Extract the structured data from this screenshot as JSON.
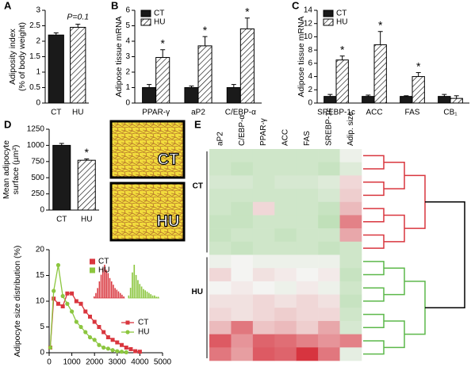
{
  "chart_data": [
    {
      "type": "bar",
      "panel": "A",
      "ylabel": [
        "Adiposity index",
        "(% of body weight)"
      ],
      "categories": [
        "CT",
        "HU"
      ],
      "values": [
        2.2,
        2.45
      ],
      "errors": [
        0.07,
        0.1
      ],
      "colors": [
        "#1a1a1a",
        "#ffffff"
      ],
      "hatch": [
        false,
        true
      ],
      "annotation": "P=0.1",
      "ylim": [
        0,
        3
      ],
      "yticks": [
        0,
        0.5,
        1,
        1.5,
        2,
        2.5,
        3
      ]
    },
    {
      "type": "bar",
      "panel": "B",
      "ylabel": [
        "Adipose tissue mRNA"
      ],
      "categories": [
        "PPAR-γ",
        "aP2",
        "C/EBP-α"
      ],
      "series": [
        {
          "name": "CT",
          "color": "#1a1a1a",
          "hatch": false,
          "values": [
            1,
            1,
            1
          ],
          "errors": [
            0.2,
            0.1,
            0.2
          ]
        },
        {
          "name": "HU",
          "color": "#ffffff",
          "hatch": true,
          "values": [
            2.95,
            3.7,
            4.8
          ],
          "errors": [
            0.5,
            0.6,
            0.7
          ],
          "significance": [
            "*",
            "*",
            "*"
          ]
        }
      ],
      "ylim": [
        0,
        6
      ],
      "yticks": [
        0,
        1,
        2,
        3,
        4,
        5,
        6
      ],
      "legend": "top-left"
    },
    {
      "type": "bar",
      "panel": "C",
      "ylabel": [
        "Adipose tissue mRNA"
      ],
      "categories": [
        "SREBP-1c",
        "ACC",
        "FAS",
        "CB₁"
      ],
      "series": [
        {
          "name": "CT",
          "color": "#1a1a1a",
          "hatch": false,
          "values": [
            1,
            1,
            1,
            1
          ],
          "errors": [
            0.3,
            0.2,
            0.1,
            0.3
          ]
        },
        {
          "name": "HU",
          "color": "#ffffff",
          "hatch": true,
          "values": [
            6.5,
            8.8,
            4,
            0.7
          ],
          "errors": [
            0.6,
            2,
            0.6,
            0.4
          ],
          "significance": [
            "*",
            "*",
            "*",
            null
          ]
        }
      ],
      "ylim": [
        0,
        14
      ],
      "yticks": [
        0,
        2,
        4,
        6,
        8,
        10,
        12,
        14
      ],
      "legend": "top-left"
    },
    {
      "type": "bar",
      "panel": "D",
      "ylabel": [
        "Mean adipocyte",
        "surface (µm²)"
      ],
      "categories": [
        "CT",
        "HU"
      ],
      "values": [
        1000,
        770
      ],
      "errors": [
        30,
        20
      ],
      "colors": [
        "#1a1a1a",
        "#ffffff"
      ],
      "hatch": [
        false,
        true
      ],
      "significance": [
        null,
        "*"
      ],
      "images": [
        "CT",
        "HU"
      ],
      "ylim": [
        0,
        1250
      ],
      "yticks": [
        0,
        250,
        500,
        750,
        1000,
        1250
      ]
    },
    {
      "type": "line",
      "ylabel": [
        "Adipocyte size distribution (%)"
      ],
      "series": [
        {
          "name": "CT",
          "color": "#d9363e",
          "marker": "square",
          "x": [
            50,
            200,
            400,
            600,
            800,
            1000,
            1200,
            1400,
            1600,
            1800,
            2000,
            2200,
            2400,
            2600,
            2800,
            3000,
            3200,
            3400,
            3600,
            3800,
            4000
          ],
          "values": [
            1,
            10.5,
            9.5,
            9,
            11.5,
            11.5,
            10,
            9.5,
            8,
            7,
            6,
            5,
            4,
            3,
            2.5,
            2,
            1.5,
            1,
            0.7,
            0.3,
            0.2
          ]
        },
        {
          "name": "HU",
          "color": "#8cc63f",
          "marker": "circle",
          "x": [
            50,
            200,
            400,
            600,
            800,
            1000,
            1200,
            1400,
            1600,
            1800,
            2000,
            2200,
            2400,
            2600,
            2800,
            3000,
            3200,
            3400
          ],
          "values": [
            1,
            12,
            17,
            11,
            9.5,
            8,
            6,
            5,
            4,
            3,
            2.5,
            1.5,
            1,
            0.8,
            0.5,
            0.3,
            0.2,
            0.1
          ]
        }
      ],
      "xlim": [
        0,
        5000
      ],
      "xticks": [
        0,
        1000,
        2000,
        3000,
        4000,
        5000
      ],
      "ylim": [
        0,
        20
      ],
      "yticks": [
        0,
        5,
        10,
        15,
        20
      ],
      "legend": "lower-right"
    },
    {
      "type": "inset-bar",
      "series": [
        {
          "name": "CT",
          "color": "#d9363e",
          "values": [
            1,
            3,
            6,
            10,
            14,
            18,
            20,
            17,
            15,
            12,
            10,
            8,
            6,
            5,
            4,
            3,
            2,
            1
          ]
        },
        {
          "name": "HU",
          "color": "#8cc63f",
          "values": [
            2,
            8,
            20,
            26,
            18,
            14,
            11,
            9,
            7,
            6,
            5,
            4,
            3,
            2,
            2,
            1,
            1
          ]
        }
      ],
      "legend": "top-left"
    },
    {
      "type": "heatmap",
      "panel": "E",
      "columns": [
        "aP2",
        "C/EBP-α",
        "PPAR-γ",
        "ACC",
        "FAS",
        "SREBP-1c",
        "Adip. size"
      ],
      "row_groups": [
        {
          "label": "CT",
          "rows": 8
        },
        {
          "label": "HU",
          "rows": 8
        }
      ],
      "values": [
        [
          -0.5,
          -0.5,
          -0.5,
          -0.5,
          -0.5,
          -0.5,
          -0.1
        ],
        [
          -0.5,
          -0.6,
          -0.5,
          -0.5,
          -0.5,
          -0.6,
          -0.3
        ],
        [
          -0.4,
          -0.4,
          -0.5,
          -0.4,
          -0.4,
          -0.3,
          0.3
        ],
        [
          -0.5,
          -0.5,
          -0.5,
          -0.5,
          -0.5,
          -0.4,
          0.4
        ],
        [
          -0.5,
          -0.6,
          0.3,
          -0.5,
          -0.5,
          -0.6,
          0.6
        ],
        [
          -0.6,
          -0.6,
          -0.5,
          -0.5,
          -0.5,
          -0.7,
          1.2
        ],
        [
          -0.6,
          -0.5,
          -0.5,
          -0.6,
          -0.5,
          -0.5,
          0.8
        ],
        [
          -0.5,
          -0.6,
          -0.5,
          -0.5,
          -0.5,
          -0.6,
          -0.5
        ],
        [
          -0.1,
          0,
          -0.1,
          -0.1,
          -0.1,
          -0.1,
          -0.5
        ],
        [
          0.3,
          0,
          0.2,
          0.1,
          0,
          0.1,
          -0.6
        ],
        [
          0,
          0.1,
          0,
          -0.1,
          0.1,
          -0.1,
          -0.5
        ],
        [
          0.2,
          0.2,
          0.3,
          0.2,
          0.3,
          0.2,
          -0.6
        ],
        [
          0.3,
          0.2,
          0.3,
          0.4,
          0.3,
          0.3,
          -0.5
        ],
        [
          0.6,
          1.3,
          0.5,
          0.6,
          0.4,
          0.8,
          -0.4
        ],
        [
          1.6,
          1.0,
          1.5,
          1.4,
          1.2,
          1.0,
          1.2
        ],
        [
          1.3,
          0.9,
          1.6,
          1.5,
          2.0,
          1.3,
          -0.2
        ]
      ],
      "color_low": "#a9d7a0",
      "color_mid": "#f4f4f2",
      "color_high": "#d7343f",
      "vlim": [
        -1,
        2
      ],
      "group_colors": [
        "#d9363e",
        "#5cb84a"
      ],
      "root_color": "#000000"
    }
  ]
}
